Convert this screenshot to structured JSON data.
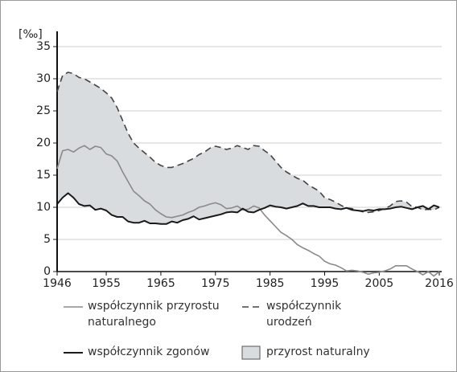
{
  "chart_data": {
    "type": "line",
    "ylabel": "[‰]",
    "x": [
      1946,
      1947,
      1948,
      1949,
      1950,
      1951,
      1952,
      1953,
      1954,
      1955,
      1956,
      1957,
      1958,
      1959,
      1960,
      1961,
      1962,
      1963,
      1964,
      1965,
      1966,
      1967,
      1968,
      1969,
      1970,
      1971,
      1972,
      1973,
      1974,
      1975,
      1976,
      1977,
      1978,
      1979,
      1980,
      1981,
      1982,
      1983,
      1984,
      1985,
      1986,
      1987,
      1988,
      1989,
      1990,
      1991,
      1992,
      1993,
      1994,
      1995,
      1996,
      1997,
      1998,
      1999,
      2000,
      2001,
      2002,
      2003,
      2004,
      2005,
      2006,
      2007,
      2008,
      2009,
      2010,
      2011,
      2012,
      2013,
      2014,
      2015,
      2016
    ],
    "series": [
      {
        "name": "współczynnik przyrostu naturalnego",
        "color": "#8a8a8a",
        "style": "solid",
        "values": [
          16,
          18.8,
          19,
          18.6,
          19.2,
          19.6,
          19,
          19.5,
          19.3,
          18.3,
          18,
          17.2,
          15.5,
          14,
          12.5,
          11.8,
          11,
          10.5,
          9.6,
          9,
          8.5,
          8.4,
          8.6,
          8.8,
          9.2,
          9.5,
          10,
          10.2,
          10.5,
          10.7,
          10.4,
          9.8,
          9.9,
          10.2,
          9.6,
          9.7,
          10.2,
          9.9,
          8.8,
          7.9,
          7,
          6.1,
          5.6,
          5,
          4.2,
          3.7,
          3.3,
          2.8,
          2.4,
          1.6,
          1.2,
          1,
          0.6,
          0.1,
          0.2,
          0.1,
          -0.1,
          -0.4,
          -0.2,
          -0.1,
          0.1,
          0.4,
          0.9,
          0.9,
          0.9,
          0.4,
          0,
          -0.5,
          0,
          -0.7,
          0
        ]
      },
      {
        "name": "współczynnik urodzeń",
        "color": "#444444",
        "style": "dashed",
        "values": [
          28,
          30.5,
          31,
          30.8,
          30.2,
          30,
          29.5,
          29,
          28.5,
          27.8,
          27,
          25.5,
          23.5,
          21.5,
          20,
          19.2,
          18.5,
          17.8,
          17,
          16.5,
          16.2,
          16.2,
          16.5,
          16.8,
          17.2,
          17.6,
          18.2,
          18.6,
          19.2,
          19.5,
          19.3,
          19,
          19.2,
          19.6,
          19.3,
          19,
          19.6,
          19.5,
          18.8,
          18.2,
          17.2,
          16.2,
          15.5,
          15,
          14.5,
          14.2,
          13.5,
          13,
          12.5,
          11.5,
          11.2,
          10.8,
          10.3,
          9.9,
          9.8,
          9.5,
          9.3,
          9.2,
          9.3,
          9.5,
          9.8,
          10.2,
          10.9,
          11,
          10.8,
          10.1,
          10,
          9.6,
          9.7,
          9.6,
          10
        ]
      },
      {
        "name": "współczynnik zgonów",
        "color": "#1a1a1a",
        "style": "solid",
        "values": [
          10.5,
          11.5,
          12.2,
          11.5,
          10.5,
          10.2,
          10.3,
          9.6,
          9.8,
          9.5,
          8.8,
          8.5,
          8.5,
          7.8,
          7.6,
          7.6,
          7.9,
          7.5,
          7.5,
          7.4,
          7.4,
          7.8,
          7.6,
          8,
          8.2,
          8.6,
          8.1,
          8.3,
          8.5,
          8.7,
          8.9,
          9.2,
          9.3,
          9.2,
          9.8,
          9.3,
          9.2,
          9.6,
          9.9,
          10.3,
          10.1,
          10,
          9.8,
          10,
          10.2,
          10.6,
          10.2,
          10.2,
          10,
          10,
          10,
          9.8,
          9.7,
          9.9,
          9.6,
          9.5,
          9.4,
          9.6,
          9.5,
          9.7,
          9.7,
          9.8,
          10,
          10.1,
          9.9,
          9.7,
          10,
          10.2,
          9.7,
          10.3,
          10
        ]
      }
    ],
    "area": {
      "name": "przyrost naturalny",
      "color": "#d8dcdf"
    },
    "xlim": [
      1946,
      2016
    ],
    "xticks": [
      1946,
      1955,
      1965,
      1975,
      1985,
      1995,
      2005,
      2016
    ],
    "ylim": [
      0,
      35
    ],
    "yticks": [
      0,
      5,
      10,
      15,
      20,
      25,
      30,
      35
    ],
    "grid": true
  }
}
